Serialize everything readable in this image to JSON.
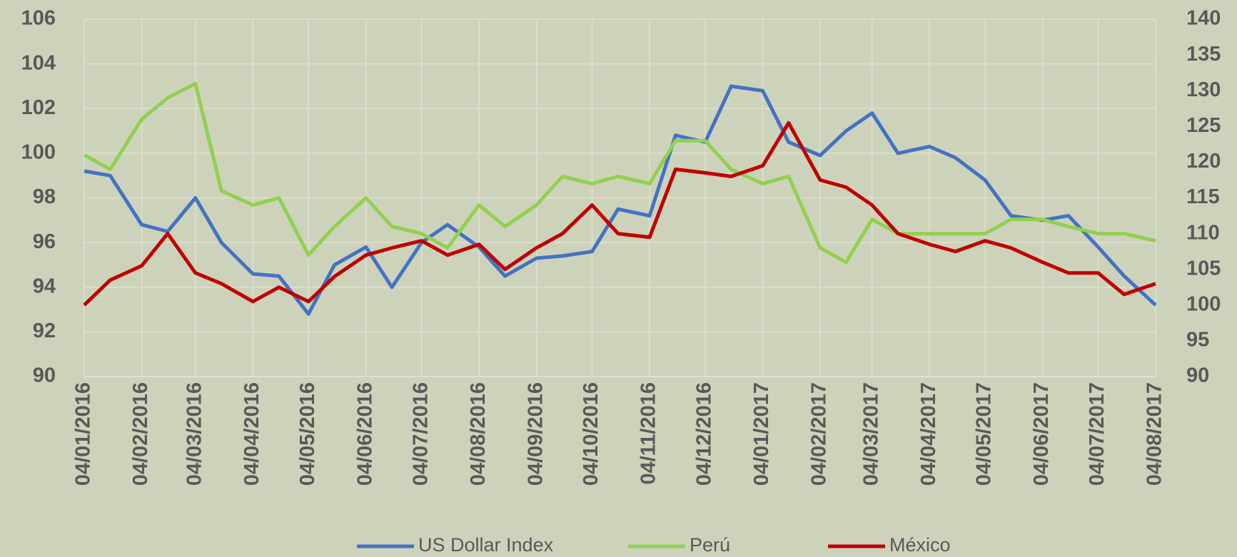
{
  "chart_data": {
    "type": "line",
    "x": [
      "04/01/2016",
      "18/01/2016",
      "04/02/2016",
      "18/02/2016",
      "04/03/2016",
      "18/03/2016",
      "04/04/2016",
      "18/04/2016",
      "04/05/2016",
      "18/05/2016",
      "04/06/2016",
      "18/06/2016",
      "04/07/2016",
      "18/07/2016",
      "04/08/2016",
      "18/08/2016",
      "04/09/2016",
      "18/09/2016",
      "04/10/2016",
      "18/10/2016",
      "04/11/2016",
      "18/11/2016",
      "04/12/2016",
      "18/12/2016",
      "04/01/2017",
      "18/01/2017",
      "04/02/2017",
      "18/02/2017",
      "04/03/2017",
      "18/03/2017",
      "04/04/2017",
      "18/04/2017",
      "04/05/2017",
      "18/05/2017",
      "04/06/2017",
      "18/06/2017",
      "04/07/2017",
      "18/07/2017",
      "04/08/2017"
    ],
    "series": [
      {
        "name": "US Dollar Index",
        "color": "#4472c4",
        "axis": "y",
        "values": [
          99.2,
          99.0,
          96.8,
          96.5,
          98.0,
          96.0,
          94.6,
          94.5,
          92.8,
          95.0,
          95.8,
          94.0,
          96.0,
          96.8,
          95.8,
          94.5,
          95.3,
          95.4,
          95.6,
          97.5,
          97.2,
          100.8,
          100.5,
          103.0,
          102.8,
          100.5,
          99.9,
          101.0,
          101.8,
          100.0,
          100.3,
          99.8,
          98.8,
          97.2,
          97.0,
          97.2,
          95.8,
          94.5,
          93.2
        ]
      },
      {
        "name": "Perú",
        "color": "#92d050",
        "axis": "y2",
        "values": [
          121,
          119,
          126,
          129,
          131,
          116,
          114,
          115,
          107,
          111,
          115,
          111,
          110,
          108,
          114,
          111,
          114,
          118,
          117,
          118,
          117,
          123,
          123,
          119,
          117,
          118,
          108,
          106,
          112,
          110,
          110,
          110,
          110,
          112,
          112,
          111,
          110,
          110,
          109
        ]
      },
      {
        "name": "México",
        "color": "#c00000",
        "axis": "y2",
        "values": [
          100,
          103.5,
          105.5,
          110,
          104.5,
          103,
          100.5,
          102.5,
          100.5,
          104,
          107,
          108,
          109,
          107,
          108.5,
          105,
          108,
          110,
          114,
          110,
          109.5,
          119,
          118.5,
          118,
          119.5,
          125.5,
          117.5,
          116.5,
          114,
          110,
          108.5,
          107.5,
          109,
          108,
          106,
          104.5,
          104.5,
          101.5,
          103
        ]
      }
    ],
    "xlim": [
      "04/01/2016",
      "04/08/2017"
    ],
    "xticks": [
      "04/01/2016",
      "04/02/2016",
      "04/03/2016",
      "04/04/2016",
      "04/05/2016",
      "04/06/2016",
      "04/07/2016",
      "04/08/2016",
      "04/09/2016",
      "04/10/2016",
      "04/11/2016",
      "04/12/2016",
      "04/01/2017",
      "04/02/2017",
      "04/03/2017",
      "04/04/2017",
      "04/05/2017",
      "04/06/2017",
      "04/07/2017",
      "04/08/2017"
    ],
    "ylim": [
      90,
      106
    ],
    "yticks": [
      90,
      92,
      94,
      96,
      98,
      100,
      102,
      104,
      106
    ],
    "y2lim": [
      90,
      140
    ],
    "y2ticks": [
      90,
      95,
      100,
      105,
      110,
      115,
      120,
      125,
      130,
      135,
      140
    ],
    "grid": true,
    "legend": "bottom"
  }
}
